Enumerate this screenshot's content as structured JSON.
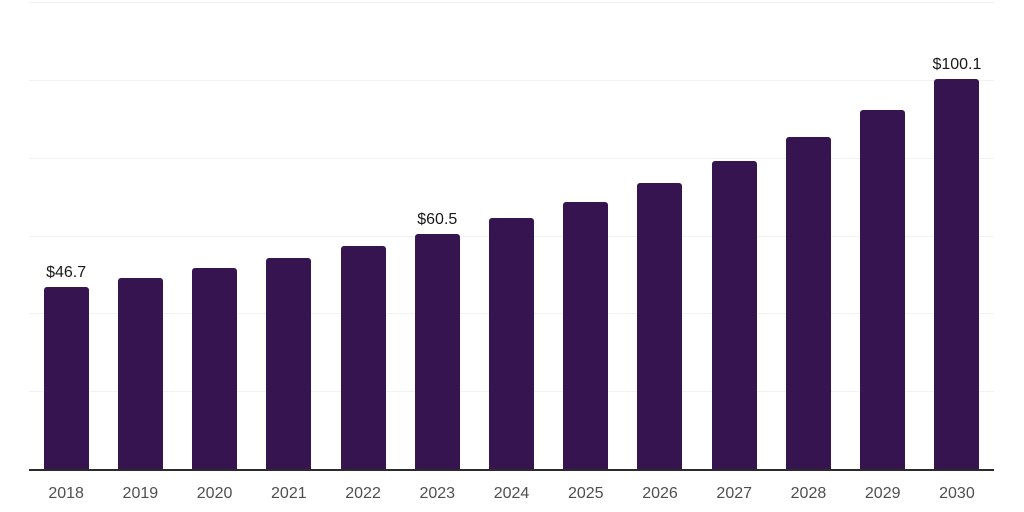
{
  "chart_data": {
    "type": "bar",
    "title": "",
    "xlabel": "",
    "ylabel": "",
    "categories": [
      "2018",
      "2019",
      "2020",
      "2021",
      "2022",
      "2023",
      "2024",
      "2025",
      "2026",
      "2027",
      "2028",
      "2029",
      "2030"
    ],
    "values": [
      46.7,
      49.1,
      51.6,
      54.2,
      57.4,
      60.5,
      64.6,
      68.6,
      73.6,
      79.2,
      85.2,
      92.2,
      100.1
    ],
    "point_labels": [
      "$46.7",
      "",
      "",
      "",
      "",
      "$60.5",
      "",
      "",
      "",
      "",
      "",
      "",
      "$100.1"
    ],
    "ylim": [
      0,
      120
    ],
    "grid_step": 20,
    "grid": true,
    "legend": false,
    "colors": {
      "bar": "#361450",
      "axis_line": "#2b2b2b",
      "gridline": "#f2f2f2",
      "tick_label": "#4f4f4f",
      "data_label": "#1a1a1a",
      "background": "#ffffff"
    }
  }
}
